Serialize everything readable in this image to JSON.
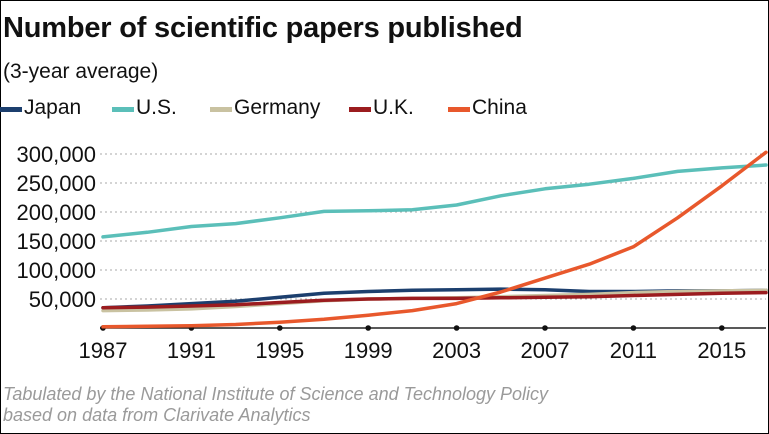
{
  "chart_data": {
    "type": "line",
    "title": "Number of scientific papers published",
    "subtitle": "(3-year average)",
    "source_lines": [
      "Tabulated by the National Institute of Science and Technology Policy",
      "based on data from Clarivate Analytics"
    ],
    "x_ticks": [
      1987,
      1991,
      1995,
      1999,
      2003,
      2007,
      2011,
      2015
    ],
    "y_ticks": [
      50000,
      100000,
      150000,
      200000,
      250000,
      300000
    ],
    "y_tick_labels": [
      "50,000",
      "100,000",
      "150,000",
      "200,000",
      "250,000",
      "300,000"
    ],
    "xlim": [
      1987,
      2017
    ],
    "ylim": [
      0,
      300000
    ],
    "grid": "horizontal dotted",
    "legend_position": "top",
    "series": [
      {
        "name": "Japan",
        "color": "#1c3f6e",
        "x": [
          1987,
          1989,
          1991,
          1993,
          1995,
          1997,
          1999,
          2001,
          2003,
          2005,
          2007,
          2009,
          2011,
          2013,
          2015,
          2017
        ],
        "y": [
          35000,
          38000,
          42000,
          46000,
          53000,
          60000,
          63000,
          65000,
          66000,
          67000,
          66000,
          63000,
          63000,
          64000,
          64000,
          65000
        ]
      },
      {
        "name": "U.S.",
        "color": "#5bbfb9",
        "x": [
          1987,
          1989,
          1991,
          1993,
          1995,
          1997,
          1999,
          2001,
          2003,
          2005,
          2007,
          2009,
          2011,
          2013,
          2015,
          2017
        ],
        "y": [
          157000,
          165000,
          175000,
          180000,
          190000,
          201000,
          202000,
          204000,
          212000,
          228000,
          240000,
          248000,
          258000,
          270000,
          276000,
          281000
        ]
      },
      {
        "name": "Germany",
        "color": "#c9c2a1",
        "x": [
          1987,
          1989,
          1991,
          1993,
          1995,
          1997,
          1999,
          2001,
          2003,
          2005,
          2007,
          2009,
          2011,
          2013,
          2015,
          2017
        ],
        "y": [
          30000,
          31000,
          33000,
          37000,
          42000,
          47000,
          50000,
          51000,
          52000,
          54000,
          56000,
          58000,
          61000,
          63000,
          64000,
          65000
        ]
      },
      {
        "name": "U.K.",
        "color": "#9b1c1f",
        "x": [
          1987,
          1989,
          1991,
          1993,
          1995,
          1997,
          1999,
          2001,
          2003,
          2005,
          2007,
          2009,
          2011,
          2013,
          2015,
          2017
        ],
        "y": [
          35000,
          36000,
          38000,
          40000,
          44000,
          48000,
          50000,
          51000,
          51000,
          52000,
          53000,
          54000,
          56000,
          58000,
          60000,
          61000
        ]
      },
      {
        "name": "China",
        "color": "#e8582c",
        "x": [
          1987,
          1989,
          1991,
          1993,
          1995,
          1997,
          1999,
          2001,
          2003,
          2005,
          2007,
          2009,
          2011,
          2013,
          2015,
          2017
        ],
        "y": [
          2000,
          3000,
          4000,
          6000,
          10000,
          15000,
          22000,
          30000,
          42000,
          62000,
          86000,
          110000,
          140000,
          190000,
          245000,
          303000
        ]
      }
    ]
  }
}
